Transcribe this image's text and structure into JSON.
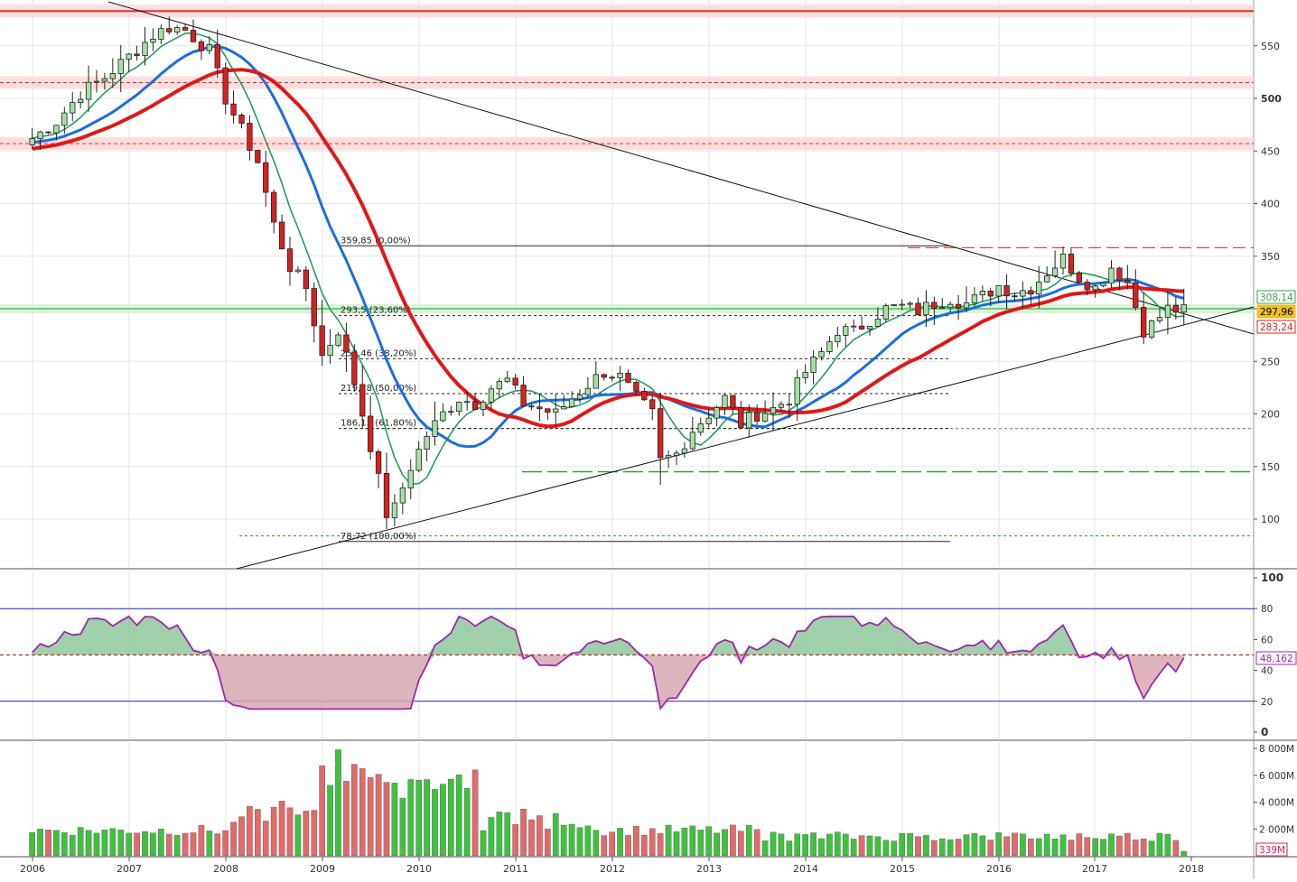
{
  "chart_data": [
    {
      "panel": "price",
      "type": "candlestick",
      "yticks": [
        100,
        150,
        200,
        250,
        300,
        350,
        400,
        450,
        500,
        550
      ],
      "ylim": [
        40,
        590
      ],
      "x_axis_years": [
        "2006",
        "2007",
        "2008",
        "2009",
        "2010",
        "2011",
        "2012",
        "2013",
        "2014",
        "2015",
        "2016",
        "2017",
        "2018"
      ],
      "price_tags": [
        {
          "value": "308,14",
          "color": "#3aa35a"
        },
        {
          "value": "297,96",
          "color": "#f0c020"
        },
        {
          "value": "283,24",
          "color": "#e02020"
        }
      ],
      "fib_levels": [
        {
          "label": "359,85 (0,00%)",
          "value": 359.85
        },
        {
          "label": "293,5 (23,60%)",
          "value": 293.5
        },
        {
          "label": "252,46 (38,20%)",
          "value": 252.46
        },
        {
          "label": "219,28 (50,00%)",
          "value": 219.28
        },
        {
          "label": "186,11 (61,80%)",
          "value": 186.11
        },
        {
          "label": "78,72 (100,00%)",
          "value": 78.72
        }
      ],
      "resistance_levels": [
        583,
        515,
        457
      ],
      "support_green": 300,
      "dashed_levels": [
        {
          "value": 358,
          "color": "#e02020"
        },
        {
          "value": 145,
          "color": "#2aa02a"
        },
        {
          "value": 186,
          "color": "#2aa02a"
        },
        {
          "value": 84,
          "color": "#2aa02a"
        }
      ],
      "candle_colors": {
        "up": "#a6e0a6",
        "down": "#d92020"
      },
      "ma_series": [
        {
          "color": "#2a9a5e"
        },
        {
          "color": "#1a6fdc"
        },
        {
          "color": "#e01818"
        }
      ]
    },
    {
      "panel": "oscillator",
      "type": "line",
      "ylim": [
        0,
        100
      ],
      "yticks": [
        0,
        20,
        40,
        60,
        80,
        100
      ],
      "last_value": "48,162",
      "midline": 50,
      "bands": [
        20,
        80
      ],
      "line_color": "#9a2aa8"
    },
    {
      "panel": "volume",
      "type": "bar",
      "ylim": [
        0,
        8000000
      ],
      "yticks": [
        {
          "value": 2000000,
          "label": "2 000M"
        },
        {
          "value": 4000000,
          "label": "4 000M"
        },
        {
          "value": 6000000,
          "label": "6 000M"
        },
        {
          "value": 8000000,
          "label": "8 000M"
        }
      ],
      "last_value": "339M",
      "colors": {
        "up": "#3ec23e",
        "down": "#e26a6a"
      }
    }
  ]
}
